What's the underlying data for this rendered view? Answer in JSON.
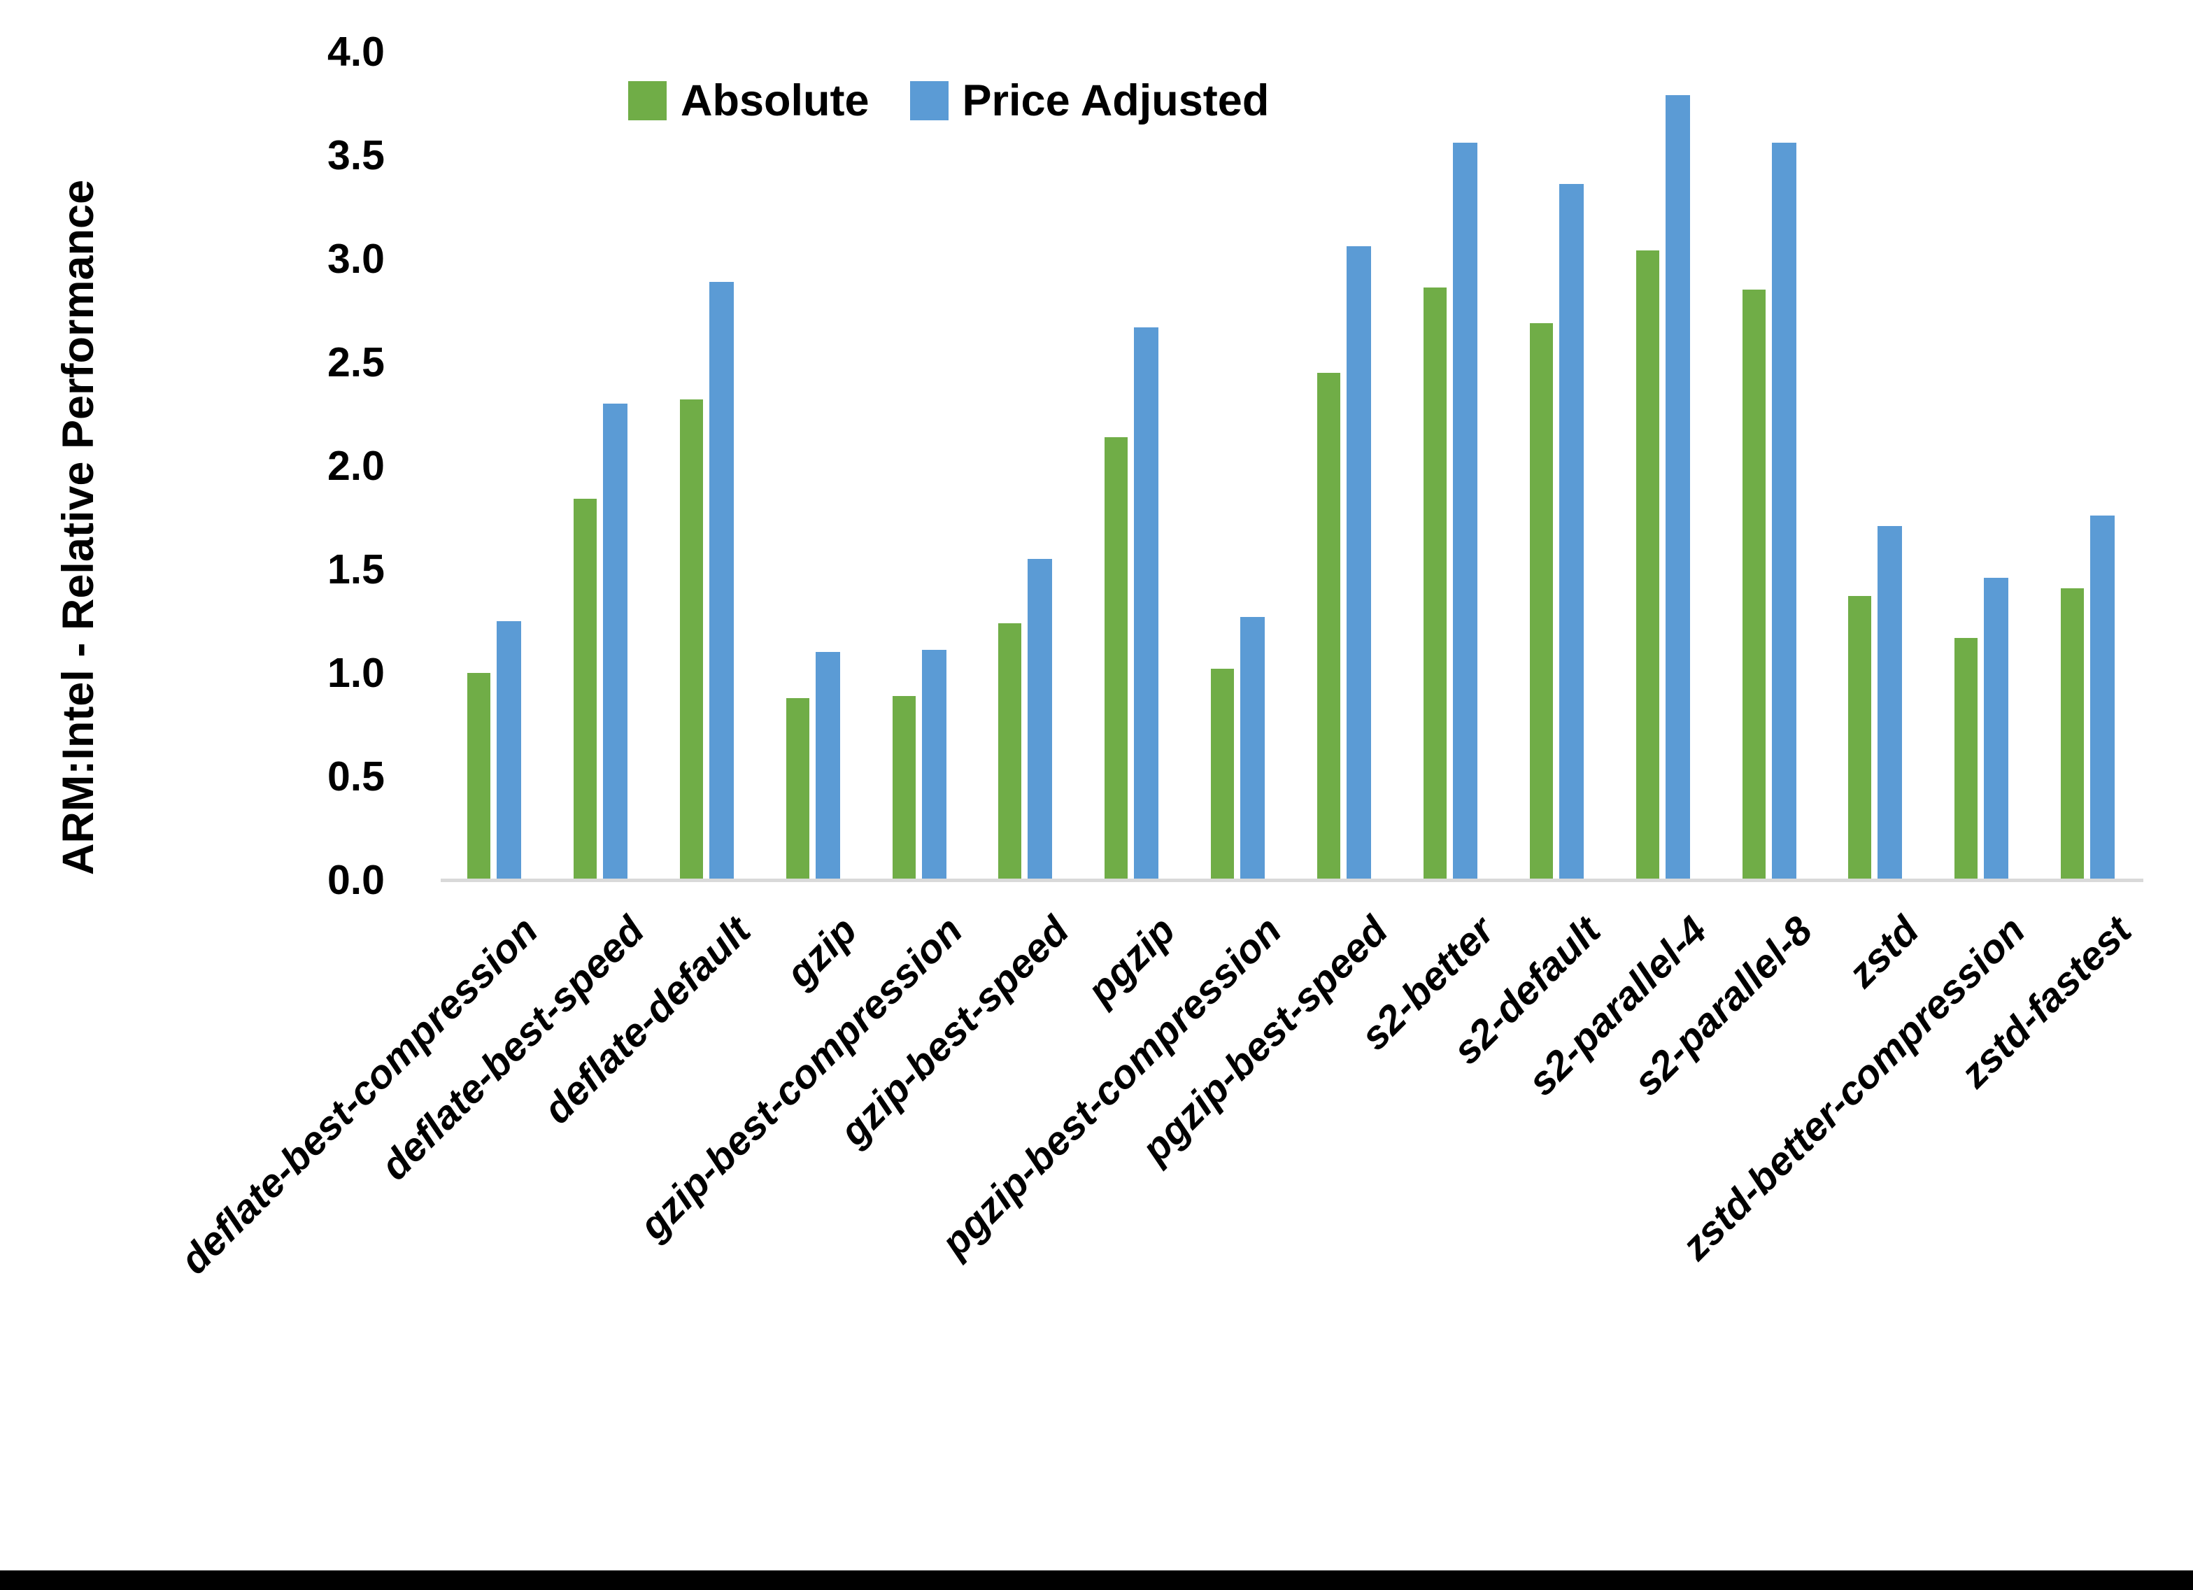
{
  "chart_data": {
    "type": "bar",
    "title": "",
    "ylabel": "ARM:Intel - Relative Performance",
    "xlabel": "",
    "ylim": [
      0.0,
      4.0
    ],
    "ytick_step": 0.5,
    "yticks": [
      "4.0",
      "3.5",
      "3.0",
      "2.5",
      "2.0",
      "1.5",
      "1.0",
      "0.5",
      "0.0"
    ],
    "grid": false,
    "legend_position": "top-center",
    "axis_line_color": "#d9d9d9",
    "text_color": "#000000",
    "categories": [
      "deflate-best-compression",
      "deflate-best-speed",
      "deflate-default",
      "gzip",
      "gzip-best-compression",
      "gzip-best-speed",
      "pgzip",
      "pgzip-best-compression",
      "pgzip-best-speed",
      "s2-better",
      "s2-default",
      "s2-parallel-4",
      "s2-parallel-8",
      "zstd",
      "zstd-better-compression",
      "zstd-fastest"
    ],
    "series": [
      {
        "name": "Absolute",
        "color": "#70AD47",
        "values": [
          1.0,
          1.84,
          2.32,
          0.88,
          0.89,
          1.24,
          2.14,
          1.02,
          2.45,
          2.86,
          2.69,
          3.04,
          2.85,
          1.37,
          1.17,
          1.41
        ]
      },
      {
        "name": "Price Adjusted",
        "color": "#5B9BD5",
        "values": [
          1.25,
          2.3,
          2.89,
          1.1,
          1.11,
          1.55,
          2.67,
          1.27,
          3.06,
          3.56,
          3.36,
          3.79,
          3.56,
          1.71,
          1.46,
          1.76
        ]
      }
    ]
  }
}
